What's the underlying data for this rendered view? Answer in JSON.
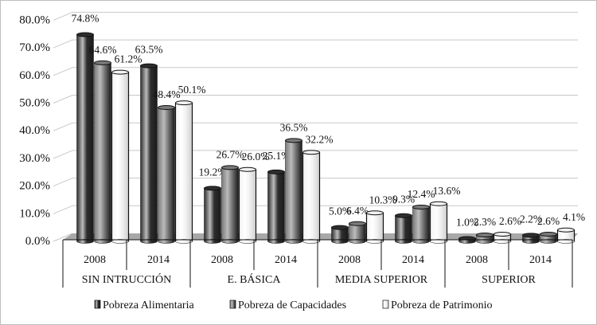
{
  "chart_data": {
    "type": "bar",
    "title": "",
    "xlabel": "",
    "ylabel": "",
    "ylim": [
      0,
      80
    ],
    "y_ticks": [
      "0.0%",
      "10.0%",
      "20.0%",
      "30.0%",
      "40.0%",
      "50.0%",
      "60.0%",
      "70.0%",
      "80.0%"
    ],
    "grid": true,
    "legend_position": "bottom",
    "groups": [
      "SIN INTRUCCIÓN",
      "E. BÁSICA",
      "MEDIA SUPERIOR",
      "SUPERIOR"
    ],
    "years": [
      "2008",
      "2014"
    ],
    "categories": [
      "SIN INTRUCCIÓN 2008",
      "SIN INTRUCCIÓN 2014",
      "E. BÁSICA 2008",
      "E. BÁSICA 2014",
      "MEDIA SUPERIOR 2008",
      "MEDIA SUPERIOR 2014",
      "SUPERIOR 2008",
      "SUPERIOR 2014"
    ],
    "series": [
      {
        "name": "Pobreza Alimentaria",
        "color": "#2e2e2e",
        "values": [
          74.8,
          63.5,
          19.2,
          25.1,
          5.0,
          9.3,
          1.0,
          2.2
        ]
      },
      {
        "name": "Pobreza de Capacidades",
        "color": "#7a7a7a",
        "values": [
          64.6,
          48.4,
          26.7,
          36.5,
          6.4,
          12.4,
          2.3,
          2.6
        ]
      },
      {
        "name": "Pobreza de Patrimonio",
        "color": "#f2f2f2",
        "values": [
          61.2,
          50.1,
          26.0,
          32.2,
          10.3,
          13.6,
          2.6,
          4.1
        ]
      }
    ],
    "value_format": "percent_1dp"
  }
}
